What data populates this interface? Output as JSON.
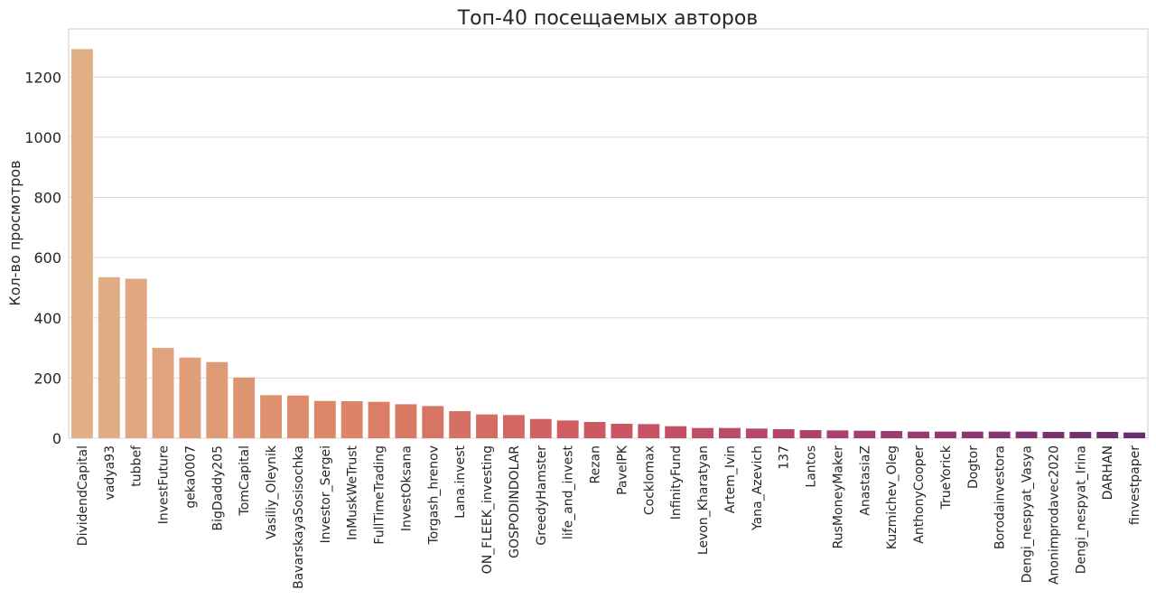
{
  "chart_data": {
    "type": "bar",
    "title": "Топ-40 посещаемых авторов",
    "xlabel": "",
    "ylabel": "Кол-во просмотров",
    "ylim": [
      0,
      1360
    ],
    "yticks": [
      0,
      200,
      400,
      600,
      800,
      1000,
      1200
    ],
    "grid": true,
    "palette": "flare (light orange to dark purple)",
    "categories": [
      "DividendCapital",
      "vadya93",
      "tubbef",
      "InvestFuture",
      "geka0007",
      "BigDaddy205",
      "TomCapital",
      "Vasiliy_Oleynik",
      "BavarskayaSosisochka",
      "Investor_Sergei",
      "InMuskWeTrust",
      "FullTimeTrading",
      "InvestOksana",
      "Torgash_hrenov",
      "Lana.invest",
      "ON_FLEEK_investing",
      "GOSPODINDOLAR",
      "GreedyHamster",
      "life_and_invest",
      "Rezan",
      "PavelPK",
      "Cocklomax",
      "InfinityFund",
      "Levon_Kharatyan",
      "Artem_Ivin",
      "Yana_Azevich",
      "137",
      "Lantos",
      "RusMoneyMaker",
      "AnastasiaZ",
      "Kuzmichev_Oleg",
      "AnthonyCooper",
      "TrueYorick",
      "Dogtor",
      "Borodainvestora",
      "Dengi_nespyat_Vasya",
      "Anonimprodavec2020",
      "Dengi_nespyat_Irina",
      "DARHAN",
      "finvestpaper"
    ],
    "values": [
      1293,
      535,
      530,
      300,
      268,
      253,
      202,
      143,
      142,
      124,
      123,
      121,
      113,
      107,
      90,
      79,
      77,
      64,
      59,
      54,
      48,
      47,
      40,
      34,
      34,
      32,
      30,
      27,
      26,
      25,
      24,
      22,
      22,
      22,
      22,
      22,
      21,
      21,
      21,
      19
    ]
  }
}
